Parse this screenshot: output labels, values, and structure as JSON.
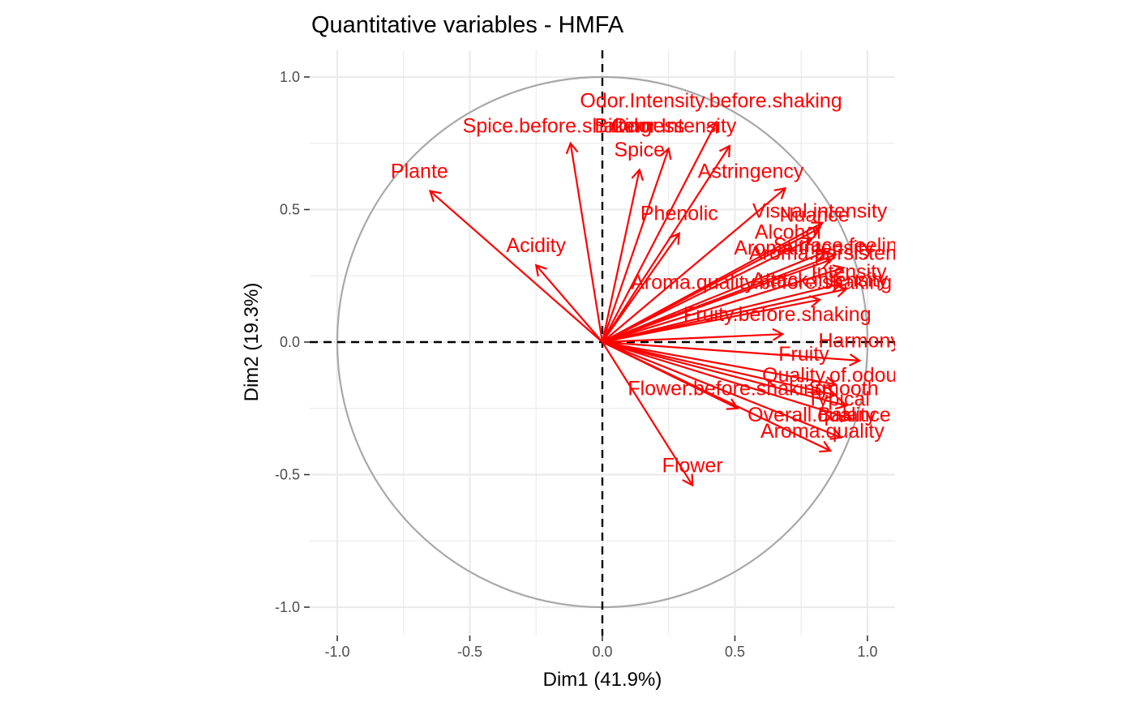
{
  "chart_data": {
    "type": "scatter",
    "title": "Quantitative variables - HMFA",
    "xlabel": "Dim1 (41.9%)",
    "ylabel": "Dim2 (19.3%)",
    "xlim": [
      -1.0,
      1.0
    ],
    "ylim": [
      -1.0,
      1.0
    ],
    "xticks": [
      "-1.0",
      "-0.5",
      "0.0",
      "0.5",
      "1.0"
    ],
    "yticks": [
      "-1.0",
      "-0.5",
      "0.0",
      "0.5",
      "1.0"
    ],
    "grid": true,
    "unit_circle": true,
    "reference_lines": [
      0,
      0
    ],
    "colors": {
      "arrow": "#ff0000",
      "circle": "#a8a8a8",
      "grid": "#ebebeb",
      "reference": "#000000"
    },
    "variables": [
      {
        "name": "Odor.Intensity.before.shaking",
        "x": 0.43,
        "y": 0.83
      },
      {
        "name": "Spice.before.shaking",
        "x": -0.12,
        "y": 0.75
      },
      {
        "name": "Bitterness",
        "x": 0.25,
        "y": 0.73
      },
      {
        "name": "Odor.Intensity",
        "x": 0.48,
        "y": 0.74
      },
      {
        "name": "Spice",
        "x": 0.14,
        "y": 0.65
      },
      {
        "name": "Plante",
        "x": -0.65,
        "y": 0.57
      },
      {
        "name": "Astringency",
        "x": 0.69,
        "y": 0.58
      },
      {
        "name": "Phenolic",
        "x": 0.29,
        "y": 0.41
      },
      {
        "name": "Visual.intensity",
        "x": 0.83,
        "y": 0.45
      },
      {
        "name": "Nuance",
        "x": 0.82,
        "y": 0.43
      },
      {
        "name": "Alcohol",
        "x": 0.79,
        "y": 0.39
      },
      {
        "name": "Acidity",
        "x": -0.25,
        "y": 0.29
      },
      {
        "name": "Aroma.intensity",
        "x": 0.84,
        "y": 0.34
      },
      {
        "name": "Surface.feeling",
        "x": 0.88,
        "y": 0.33
      },
      {
        "name": "Aroma.persistency",
        "x": 0.86,
        "y": 0.31
      },
      {
        "name": "Intensity",
        "x": 0.91,
        "y": 0.28
      },
      {
        "name": "Attack.intensity",
        "x": 0.9,
        "y": 0.22
      },
      {
        "name": "Aroma.quality.before.shaking",
        "x": 0.92,
        "y": 0.2
      },
      {
        "name": "Fruity.before.shaking",
        "x": 0.82,
        "y": 0.16
      },
      {
        "name": "Harmony",
        "x": 0.68,
        "y": 0.03
      },
      {
        "name": "Fruity",
        "x": 0.97,
        "y": -0.07
      },
      {
        "name": "Quality.of.odour",
        "x": 0.88,
        "y": -0.16
      },
      {
        "name": "Smooth",
        "x": 0.88,
        "y": -0.2
      },
      {
        "name": "Flower.before.shaking",
        "x": 0.51,
        "y": -0.25
      },
      {
        "name": "Typical",
        "x": 0.92,
        "y": -0.24
      },
      {
        "name": "Balance",
        "x": 0.94,
        "y": -0.29
      },
      {
        "name": "Overall.quality",
        "x": 0.9,
        "y": -0.36
      },
      {
        "name": "Aroma.quality",
        "x": 0.86,
        "y": -0.41
      },
      {
        "name": "Flower",
        "x": 0.34,
        "y": -0.54
      }
    ],
    "labels": [
      {
        "text": "Odor.Intensity.before.shaking",
        "x": 0.41,
        "y": 0.905
      },
      {
        "text": "Spice.before.shaking",
        "x": -0.17,
        "y": 0.81
      },
      {
        "text": "Bitterness",
        "x": 0.14,
        "y": 0.81
      },
      {
        "text": "Odor.Intensity",
        "x": 0.27,
        "y": 0.81
      },
      {
        "text": "Spice",
        "x": 0.14,
        "y": 0.72
      },
      {
        "text": "Plante",
        "x": -0.69,
        "y": 0.64
      },
      {
        "text": "Astringency",
        "x": 0.56,
        "y": 0.64
      },
      {
        "text": "Phenolic",
        "x": 0.29,
        "y": 0.48
      },
      {
        "text": "Visual.intensity",
        "x": 0.82,
        "y": 0.49
      },
      {
        "text": "Nuance",
        "x": 0.8,
        "y": 0.475
      },
      {
        "text": "Alcohol",
        "x": 0.7,
        "y": 0.41
      },
      {
        "text": "Acidity",
        "x": -0.25,
        "y": 0.36
      },
      {
        "text": "Aroma.intensity",
        "x": 0.76,
        "y": 0.35
      },
      {
        "text": "Surface.feeling",
        "x": 0.9,
        "y": 0.36
      },
      {
        "text": "Aroma.persistency",
        "x": 0.87,
        "y": 0.33
      },
      {
        "text": "Intensity",
        "x": 0.93,
        "y": 0.26
      },
      {
        "text": "Attack.intensity",
        "x": 0.82,
        "y": 0.23
      },
      {
        "text": "Aroma.quality.before.shaking",
        "x": 0.6,
        "y": 0.22
      },
      {
        "text": "Fruity.before.shaking",
        "x": 0.66,
        "y": 0.1
      },
      {
        "text": "Harmony",
        "x": 0.97,
        "y": 0.0
      },
      {
        "text": "Fruity",
        "x": 0.76,
        "y": -0.05
      },
      {
        "text": "Quality.of.odour",
        "x": 0.87,
        "y": -0.13
      },
      {
        "text": "Smooth",
        "x": 0.91,
        "y": -0.18
      },
      {
        "text": "Flower.before.shaking",
        "x": 0.47,
        "y": -0.18
      },
      {
        "text": "Typical",
        "x": 0.89,
        "y": -0.22
      },
      {
        "text": "Balance",
        "x": 0.95,
        "y": -0.28
      },
      {
        "text": "Overall.quality",
        "x": 0.79,
        "y": -0.28
      },
      {
        "text": "Aroma.quality",
        "x": 0.83,
        "y": -0.34
      },
      {
        "text": "Flower",
        "x": 0.34,
        "y": -0.47
      }
    ]
  }
}
